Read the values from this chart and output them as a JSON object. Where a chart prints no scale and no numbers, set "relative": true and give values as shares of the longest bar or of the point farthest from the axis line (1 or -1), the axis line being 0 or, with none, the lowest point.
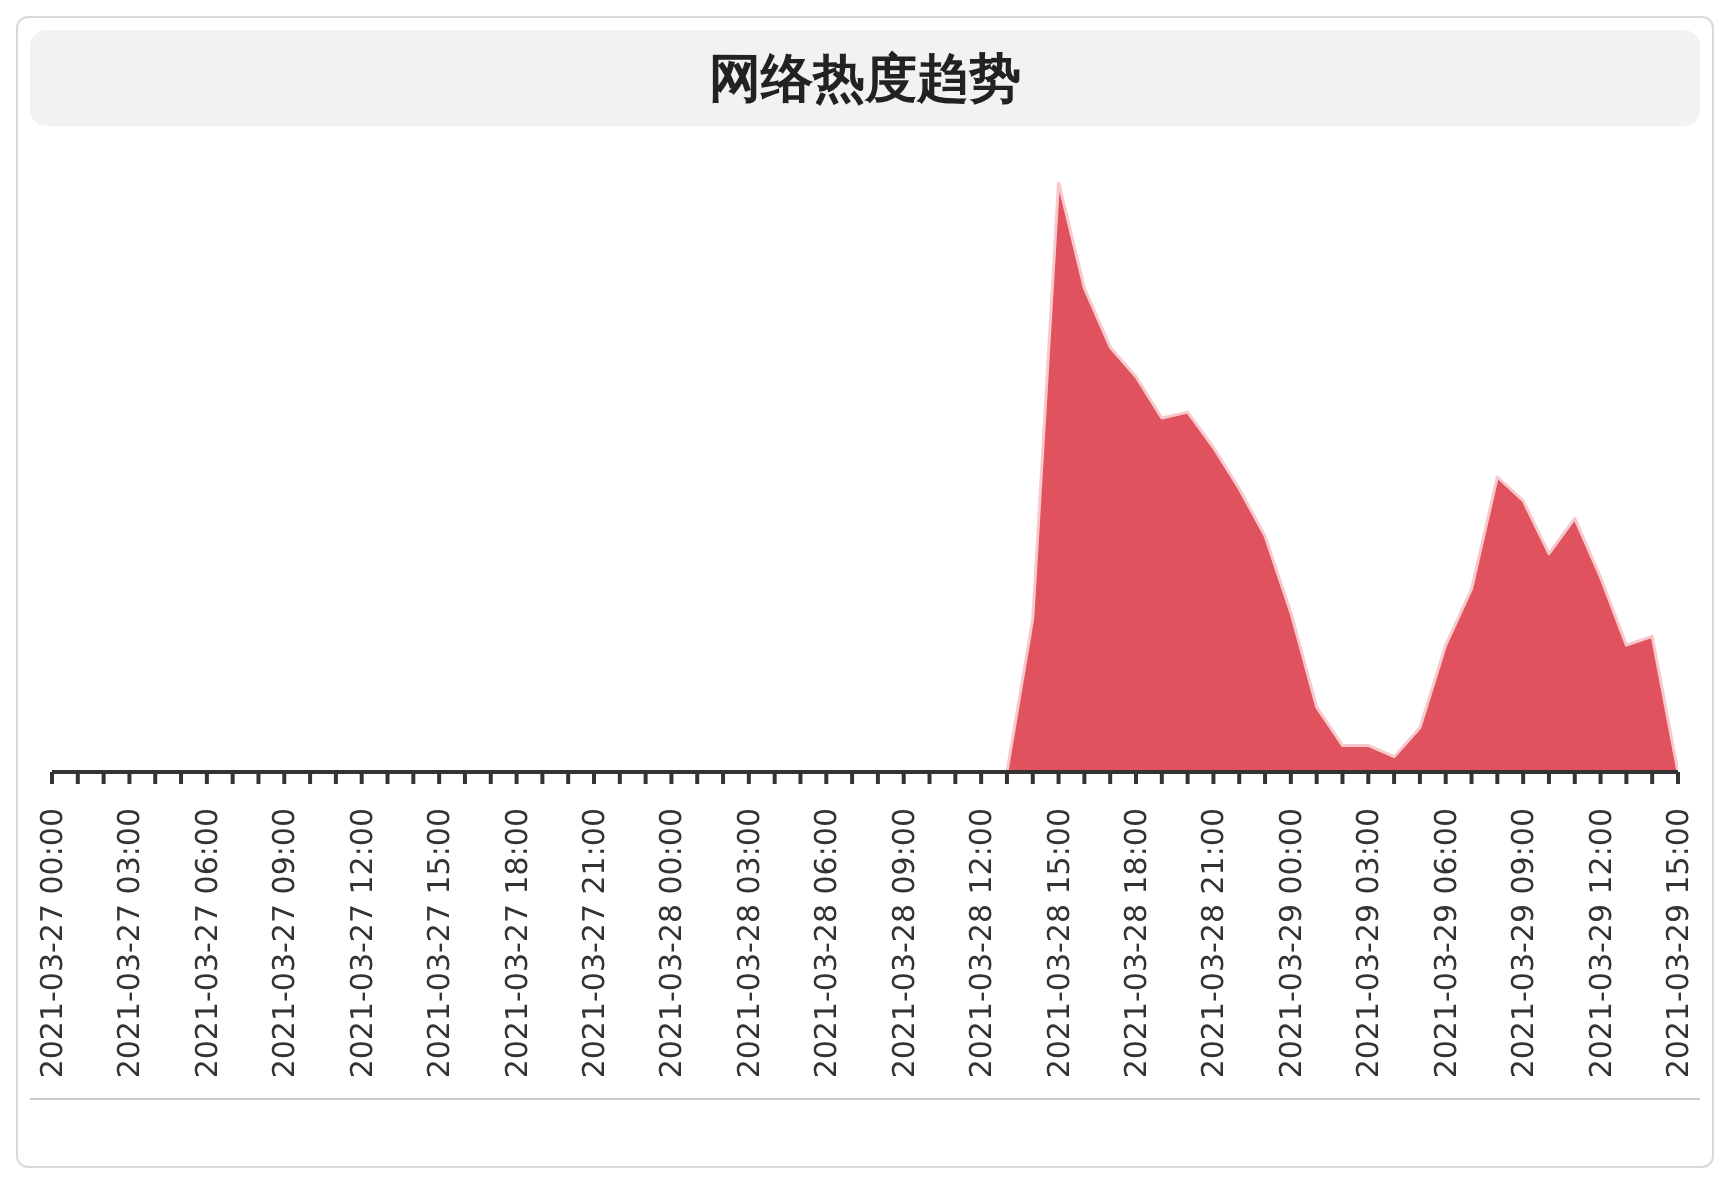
{
  "chart_data": {
    "type": "area",
    "title": "网络热度趋势",
    "relative": true,
    "color": "#e0535e",
    "x": [
      "2021-03-27T00:00",
      "2021-03-27T01:00",
      "2021-03-27T02:00",
      "2021-03-27T03:00",
      "2021-03-27T04:00",
      "2021-03-27T05:00",
      "2021-03-27T06:00",
      "2021-03-27T07:00",
      "2021-03-27T08:00",
      "2021-03-27T09:00",
      "2021-03-27T10:00",
      "2021-03-27T11:00",
      "2021-03-27T12:00",
      "2021-03-27T13:00",
      "2021-03-27T14:00",
      "2021-03-27T15:00",
      "2021-03-27T16:00",
      "2021-03-27T17:00",
      "2021-03-27T18:00",
      "2021-03-27T19:00",
      "2021-03-27T20:00",
      "2021-03-27T21:00",
      "2021-03-27T22:00",
      "2021-03-27T23:00",
      "2021-03-28T00:00",
      "2021-03-28T01:00",
      "2021-03-28T02:00",
      "2021-03-28T03:00",
      "2021-03-28T04:00",
      "2021-03-28T05:00",
      "2021-03-28T06:00",
      "2021-03-28T07:00",
      "2021-03-28T08:00",
      "2021-03-28T09:00",
      "2021-03-28T10:00",
      "2021-03-28T11:00",
      "2021-03-28T12:00",
      "2021-03-28T13:00",
      "2021-03-28T14:00",
      "2021-03-28T15:00",
      "2021-03-28T16:00",
      "2021-03-28T17:00",
      "2021-03-28T18:00",
      "2021-03-28T19:00",
      "2021-03-28T20:00",
      "2021-03-28T21:00",
      "2021-03-28T22:00",
      "2021-03-28T23:00",
      "2021-03-29T00:00",
      "2021-03-29T01:00",
      "2021-03-29T02:00",
      "2021-03-29T03:00",
      "2021-03-29T04:00",
      "2021-03-29T05:00",
      "2021-03-29T06:00",
      "2021-03-29T07:00",
      "2021-03-29T08:00",
      "2021-03-29T09:00",
      "2021-03-29T10:00",
      "2021-03-29T11:00",
      "2021-03-29T12:00",
      "2021-03-29T13:00",
      "2021-03-29T14:00",
      "2021-03-29T15:00"
    ],
    "values": [
      0,
      0,
      0,
      0,
      0,
      0,
      0,
      0,
      0,
      0,
      0,
      0,
      0,
      0,
      0,
      0,
      0,
      0,
      0,
      0,
      0,
      0,
      0,
      0,
      0,
      0,
      0,
      0,
      0,
      0,
      0,
      0,
      0,
      0,
      0,
      0,
      0,
      0,
      0.26,
      1,
      0.82,
      0.72,
      0.67,
      0.6,
      0.61,
      0.55,
      0.48,
      0.4,
      0.27,
      0.11,
      0.045,
      0.045,
      0.026,
      0.075,
      0.215,
      0.31,
      0.5,
      0.46,
      0.37,
      0.43,
      0.33,
      0.215,
      0.23,
      0
    ],
    "xlim": [
      "2021-03-27T00:00",
      "2021-03-29T15:00"
    ],
    "xticks": [
      {
        "value": "2021-03-27T00:00",
        "label": "2021-03-27 00:00"
      },
      {
        "value": "2021-03-27T01:00",
        "label": null
      },
      {
        "value": "2021-03-27T02:00",
        "label": null
      },
      {
        "value": "2021-03-27T03:00",
        "label": "2021-03-27 03:00"
      },
      {
        "value": "2021-03-27T04:00",
        "label": null
      },
      {
        "value": "2021-03-27T05:00",
        "label": null
      },
      {
        "value": "2021-03-27T06:00",
        "label": "2021-03-27 06:00"
      },
      {
        "value": "2021-03-27T07:00",
        "label": null
      },
      {
        "value": "2021-03-27T08:00",
        "label": null
      },
      {
        "value": "2021-03-27T09:00",
        "label": "2021-03-27 09:00"
      },
      {
        "value": "2021-03-27T10:00",
        "label": null
      },
      {
        "value": "2021-03-27T11:00",
        "label": null
      },
      {
        "value": "2021-03-27T12:00",
        "label": "2021-03-27 12:00"
      },
      {
        "value": "2021-03-27T13:00",
        "label": null
      },
      {
        "value": "2021-03-27T14:00",
        "label": null
      },
      {
        "value": "2021-03-27T15:00",
        "label": "2021-03-27 15:00"
      },
      {
        "value": "2021-03-27T16:00",
        "label": null
      },
      {
        "value": "2021-03-27T17:00",
        "label": null
      },
      {
        "value": "2021-03-27T18:00",
        "label": "2021-03-27 18:00"
      },
      {
        "value": "2021-03-27T19:00",
        "label": null
      },
      {
        "value": "2021-03-27T20:00",
        "label": null
      },
      {
        "value": "2021-03-27T21:00",
        "label": "2021-03-27 21:00"
      },
      {
        "value": "2021-03-27T22:00",
        "label": null
      },
      {
        "value": "2021-03-27T23:00",
        "label": null
      },
      {
        "value": "2021-03-28T00:00",
        "label": "2021-03-28 00:00"
      },
      {
        "value": "2021-03-28T01:00",
        "label": null
      },
      {
        "value": "2021-03-28T02:00",
        "label": null
      },
      {
        "value": "2021-03-28T03:00",
        "label": "2021-03-28 03:00"
      },
      {
        "value": "2021-03-28T04:00",
        "label": null
      },
      {
        "value": "2021-03-28T05:00",
        "label": null
      },
      {
        "value": "2021-03-28T06:00",
        "label": "2021-03-28 06:00"
      },
      {
        "value": "2021-03-28T07:00",
        "label": null
      },
      {
        "value": "2021-03-28T08:00",
        "label": null
      },
      {
        "value": "2021-03-28T09:00",
        "label": "2021-03-28 09:00"
      },
      {
        "value": "2021-03-28T10:00",
        "label": null
      },
      {
        "value": "2021-03-28T11:00",
        "label": null
      },
      {
        "value": "2021-03-28T12:00",
        "label": "2021-03-28 12:00"
      },
      {
        "value": "2021-03-28T13:00",
        "label": null
      },
      {
        "value": "2021-03-28T14:00",
        "label": null
      },
      {
        "value": "2021-03-28T15:00",
        "label": "2021-03-28 15:00"
      },
      {
        "value": "2021-03-28T16:00",
        "label": null
      },
      {
        "value": "2021-03-28T17:00",
        "label": null
      },
      {
        "value": "2021-03-28T18:00",
        "label": "2021-03-28 18:00"
      },
      {
        "value": "2021-03-28T19:00",
        "label": null
      },
      {
        "value": "2021-03-28T20:00",
        "label": null
      },
      {
        "value": "2021-03-28T21:00",
        "label": "2021-03-28 21:00"
      },
      {
        "value": "2021-03-28T22:00",
        "label": null
      },
      {
        "value": "2021-03-28T23:00",
        "label": null
      },
      {
        "value": "2021-03-29T00:00",
        "label": "2021-03-29 00:00"
      },
      {
        "value": "2021-03-29T01:00",
        "label": null
      },
      {
        "value": "2021-03-29T02:00",
        "label": null
      },
      {
        "value": "2021-03-29T03:00",
        "label": "2021-03-29 03:00"
      },
      {
        "value": "2021-03-29T04:00",
        "label": null
      },
      {
        "value": "2021-03-29T05:00",
        "label": null
      },
      {
        "value": "2021-03-29T06:00",
        "label": "2021-03-29 06:00"
      },
      {
        "value": "2021-03-29T07:00",
        "label": null
      },
      {
        "value": "2021-03-29T08:00",
        "label": null
      },
      {
        "value": "2021-03-29T09:00",
        "label": "2021-03-29 09:00"
      },
      {
        "value": "2021-03-29T10:00",
        "label": null
      },
      {
        "value": "2021-03-29T11:00",
        "label": null
      },
      {
        "value": "2021-03-29T12:00",
        "label": "2021-03-29 12:00"
      },
      {
        "value": "2021-03-29T13:00",
        "label": null
      },
      {
        "value": "2021-03-29T14:00",
        "label": null
      },
      {
        "value": "2021-03-29T15:00",
        "label": "2021-03-29 15:00"
      }
    ],
    "grid": false,
    "legend": false,
    "marker": "none"
  }
}
